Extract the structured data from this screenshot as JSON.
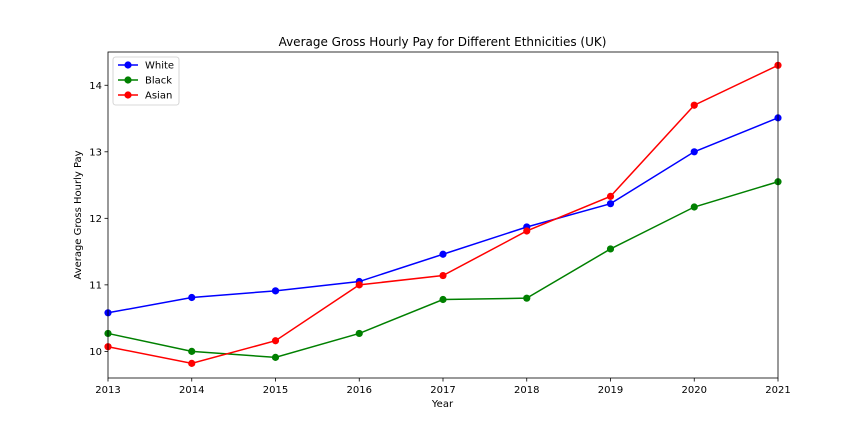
{
  "chart_data": {
    "type": "line",
    "title": "Average Gross Hourly Pay for Different Ethnicities (UK)",
    "xlabel": "Year",
    "ylabel": "Average Gross Hourly Pay",
    "x": [
      2013,
      2014,
      2015,
      2016,
      2017,
      2018,
      2019,
      2020,
      2021
    ],
    "xlim": [
      2013,
      2021
    ],
    "ylim": [
      9.6,
      14.5
    ],
    "yticks": [
      10,
      11,
      12,
      13,
      14
    ],
    "grid": false,
    "legend_position": "top-left",
    "series": [
      {
        "name": "White",
        "color": "#0000ff",
        "values": [
          10.58,
          10.81,
          10.91,
          11.05,
          11.46,
          11.87,
          12.22,
          13.0,
          13.51
        ]
      },
      {
        "name": "Black",
        "color": "#008000",
        "values": [
          10.27,
          10.0,
          9.91,
          10.27,
          10.78,
          10.8,
          11.54,
          12.17,
          12.55
        ]
      },
      {
        "name": "Asian",
        "color": "#ff0000",
        "values": [
          10.07,
          9.82,
          10.16,
          11.0,
          11.14,
          11.81,
          12.33,
          13.7,
          14.3
        ]
      }
    ]
  }
}
